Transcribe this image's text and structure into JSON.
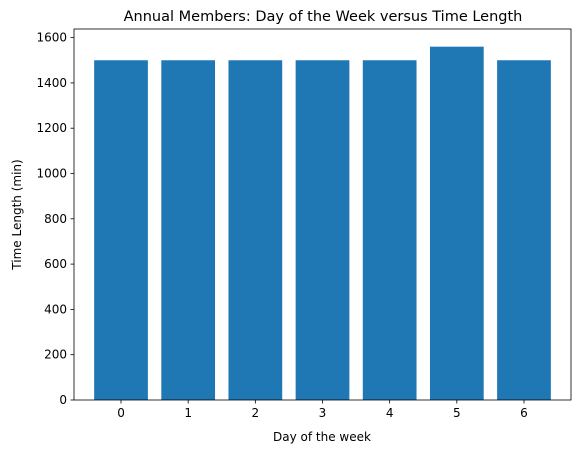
{
  "chart_data": {
    "type": "bar",
    "title": "Annual Members: Day of the Week versus Time Length",
    "xlabel": "Day of the week",
    "ylabel": "Time Length (min)",
    "categories": [
      "0",
      "1",
      "2",
      "3",
      "4",
      "5",
      "6"
    ],
    "values": [
      1500,
      1500,
      1500,
      1500,
      1500,
      1560,
      1500
    ],
    "ylim": [
      0,
      1638
    ],
    "yticks": [
      0,
      200,
      400,
      600,
      800,
      1000,
      1200,
      1400,
      1600
    ],
    "bar_color": "#1f77b4",
    "grid": false,
    "legend": "none"
  }
}
